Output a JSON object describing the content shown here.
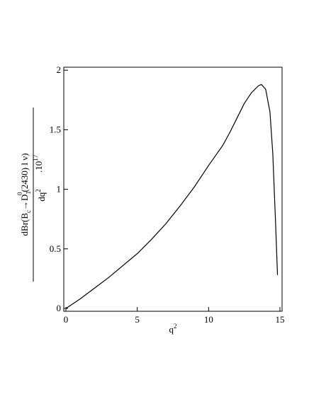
{
  "chart_data": {
    "type": "line",
    "xlabel": [
      "q",
      "2"
    ],
    "ylabel": {
      "numerator": [
        "dBr(B",
        "c",
        "→D",
        "1",
        "0",
        "(2430)  l ν)"
      ],
      "denominator": [
        "dq",
        "2"
      ],
      "factor": [
        ".10",
        "17"
      ]
    },
    "x": [
      0,
      1,
      2,
      3,
      4,
      5,
      6,
      7,
      8,
      9,
      10,
      11,
      11.5,
      12,
      12.5,
      13,
      13.5,
      13.7,
      14,
      14.3,
      14.5,
      14.7,
      14.83
    ],
    "series": [
      {
        "color": "#000000",
        "values": [
          0,
          0.08,
          0.17,
          0.26,
          0.36,
          0.46,
          0.58,
          0.71,
          0.86,
          1.02,
          1.2,
          1.37,
          1.48,
          1.6,
          1.72,
          1.81,
          1.87,
          1.88,
          1.84,
          1.65,
          1.3,
          0.7,
          0.28
        ]
      }
    ],
    "xlim": [
      -0.15,
      15.15
    ],
    "ylim": [
      -0.024,
      2.025
    ],
    "xticks": [
      0,
      5,
      10,
      15
    ],
    "yticks": [
      0,
      0.5,
      1,
      1.5,
      2
    ]
  }
}
